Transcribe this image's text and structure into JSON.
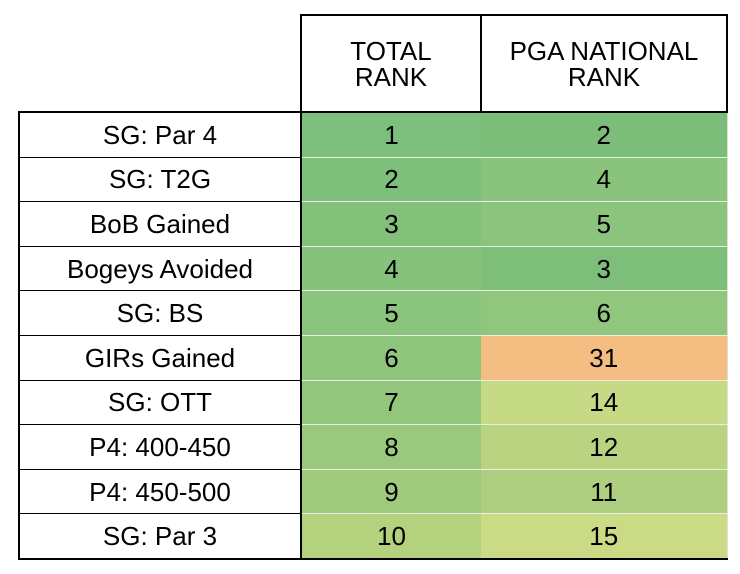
{
  "header": {
    "total_rank_line1": "TOTAL",
    "total_rank_line2": "RANK",
    "pga_rank_line1": "PGA NATIONAL",
    "pga_rank_line2": "RANK"
  },
  "rows": [
    {
      "metric": "SG: Par 4",
      "total": "1",
      "pga": "2"
    },
    {
      "metric": "SG: T2G",
      "total": "2",
      "pga": "4"
    },
    {
      "metric": "BoB Gained",
      "total": "3",
      "pga": "5"
    },
    {
      "metric": "Bogeys Avoided",
      "total": "4",
      "pga": "3"
    },
    {
      "metric": "SG: BS",
      "total": "5",
      "pga": "6"
    },
    {
      "metric": "GIRs Gained",
      "total": "6",
      "pga": "31"
    },
    {
      "metric": "SG: OTT",
      "total": "7",
      "pga": "14"
    },
    {
      "metric": "P4: 400-450",
      "total": "8",
      "pga": "12"
    },
    {
      "metric": "P4: 450-500",
      "total": "9",
      "pga": "11"
    },
    {
      "metric": "SG: Par 3",
      "total": "10",
      "pga": "15"
    }
  ],
  "colors": {
    "total": [
      "#7dbf7c",
      "#7ebf7c",
      "#83c17b",
      "#86c27c",
      "#8bc47c",
      "#8fc57d",
      "#93c67c",
      "#9ac87d",
      "#9fca7e",
      "#b4d17e"
    ],
    "pga": [
      "#7cbd7a",
      "#89c37c",
      "#8dc47d",
      "#7cbe7a",
      "#90c67d",
      "#f4bd82",
      "#c6d984",
      "#b9d381",
      "#aecf80",
      "#cbdb85"
    ]
  }
}
